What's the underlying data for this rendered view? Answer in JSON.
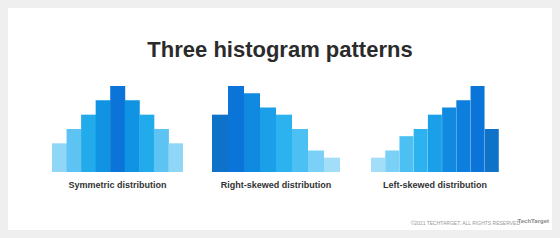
{
  "title": "Three histogram patterns",
  "chart_data": [
    {
      "type": "bar",
      "title": "Symmetric distribution",
      "categories": [
        null,
        null,
        null,
        null,
        null,
        null,
        null,
        null,
        null
      ],
      "values": [
        2,
        3,
        4,
        5,
        6,
        5,
        4,
        3,
        2
      ],
      "colors": [
        "#8fd6f7",
        "#5cc3f2",
        "#22abea",
        "#0f93e2",
        "#0b74d8",
        "#0f93e2",
        "#22abea",
        "#5cc3f2",
        "#8fd6f7"
      ],
      "ylim": [
        0,
        6
      ],
      "grid": false,
      "tick_labels": false
    },
    {
      "type": "bar",
      "title": "Right-skewed distribution",
      "categories": [
        null,
        null,
        null,
        null,
        null,
        null,
        null,
        null
      ],
      "values": [
        4,
        6,
        5.5,
        4.5,
        4,
        3,
        1.5,
        1
      ],
      "colors": [
        "#0e72c8",
        "#0b74d8",
        "#0f8ae0",
        "#1a9fe8",
        "#2cb2ee",
        "#4cc0f2",
        "#7ad0f6",
        "#a3def9"
      ],
      "ylim": [
        0,
        6
      ],
      "grid": false,
      "tick_labels": false
    },
    {
      "type": "bar",
      "title": "Left-skewed distribution",
      "categories": [
        null,
        null,
        null,
        null,
        null,
        null,
        null,
        null,
        null
      ],
      "values": [
        1,
        1.5,
        2.5,
        3,
        4,
        4.5,
        5,
        6,
        3
      ],
      "colors": [
        "#a3def9",
        "#7ad0f6",
        "#4cc0f2",
        "#2cb2ee",
        "#1a9fe8",
        "#0f8ae0",
        "#0b7ede",
        "#0b74d8",
        "#0e72c8"
      ],
      "ylim": [
        0,
        6
      ],
      "grid": false,
      "tick_labels": false
    }
  ],
  "footer": {
    "copyright": "©2021 TECHTARGET. ALL RIGHTS RESERVED",
    "logo": "TechTarget"
  }
}
